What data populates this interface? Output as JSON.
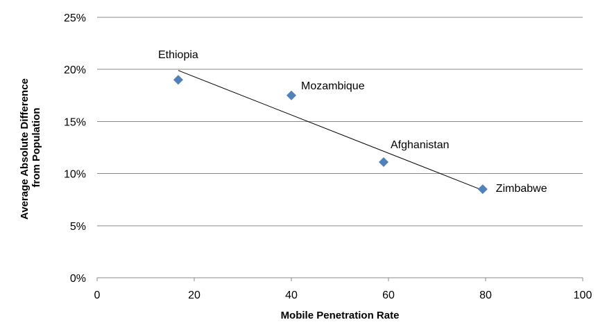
{
  "chart_data": {
    "type": "scatter",
    "title": "",
    "xlabel": "Mobile Penetration Rate",
    "ylabel_lines": [
      "Average Absolute Difference",
      "from Population"
    ],
    "xlim": [
      0,
      100
    ],
    "ylim": [
      0,
      25
    ],
    "xticks": [
      0,
      20,
      40,
      60,
      80,
      100
    ],
    "yticks": [
      0,
      5,
      10,
      15,
      20,
      25
    ],
    "y_unit": "%",
    "grid": "horizontal",
    "marker": "diamond",
    "marker_color": "#4F81BD",
    "points": [
      {
        "label": "Ethiopia",
        "x": 16.7,
        "y": 19.0
      },
      {
        "label": "Mozambique",
        "x": 40.0,
        "y": 17.5
      },
      {
        "label": "Afghanistan",
        "x": 59.0,
        "y": 11.1
      },
      {
        "label": "Zimbabwe",
        "x": 79.4,
        "y": 8.5
      }
    ],
    "trendline": {
      "type": "linear",
      "from": [
        16.7,
        19.9
      ],
      "to": [
        79.4,
        8.4
      ],
      "color": "#000000"
    }
  }
}
